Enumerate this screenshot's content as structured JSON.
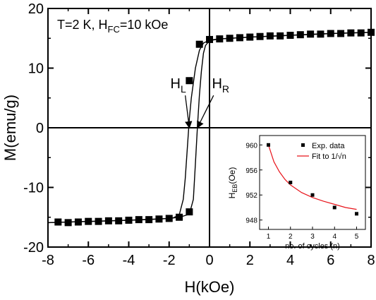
{
  "chart_data": [
    {
      "type": "scatter",
      "annotation": {
        "prefix": "T=2 K, H",
        "sub": "FC",
        "suffix": "=10 kOe"
      },
      "xlabel": "H(kOe)",
      "ylabel": "M(emu/g)",
      "xlim": [
        -8,
        8
      ],
      "ylim": [
        -20,
        20
      ],
      "xticks": [
        -8,
        -6,
        -4,
        -2,
        0,
        2,
        4,
        6,
        8
      ],
      "yticks": [
        -20,
        -10,
        0,
        10,
        20
      ],
      "xtick_labels": [
        "-8",
        "-6",
        "-4",
        "-2",
        "0",
        "2",
        "4",
        "6",
        "8"
      ],
      "ytick_labels": [
        "-20",
        "-10",
        "0",
        "10",
        "20"
      ],
      "series": [
        {
          "marker": "square",
          "x": [
            -7.5,
            -7.0,
            -6.5,
            -6.0,
            -5.5,
            -5.0,
            -4.5,
            -4.0,
            -3.5,
            -3.0,
            -2.5,
            -2.0,
            -1.5,
            -1.0,
            -1.0,
            -0.5,
            0.0,
            0.5,
            1.0,
            1.5,
            2.0,
            2.5,
            3.0,
            3.5,
            4.0,
            4.5,
            5.0,
            5.5,
            6.0,
            6.5,
            7.0,
            7.5,
            8.0
          ],
          "y": [
            -15.8,
            -15.9,
            -15.8,
            -15.7,
            -15.7,
            -15.6,
            -15.6,
            -15.5,
            -15.4,
            -15.4,
            -15.3,
            -15.2,
            -15.0,
            -14.1,
            7.9,
            14.0,
            14.8,
            14.9,
            15.0,
            15.1,
            15.2,
            15.3,
            15.4,
            15.4,
            15.5,
            15.6,
            15.7,
            15.7,
            15.8,
            15.8,
            15.9,
            15.9,
            16.0
          ]
        }
      ],
      "fit_branches": [
        {
          "name": "descending",
          "x": [
            8.0,
            6.0,
            4.0,
            2.0,
            1.0,
            0.5,
            0.0,
            -0.3,
            -0.5,
            -0.7,
            -0.9,
            -1.0,
            -1.1,
            -1.2,
            -1.3,
            -1.5,
            -1.8,
            -2.0,
            -3.0,
            -4.0,
            -6.0,
            -8.0
          ],
          "y": [
            16.0,
            15.8,
            15.5,
            15.2,
            15.0,
            14.9,
            14.7,
            14.2,
            13.0,
            10.0,
            5.0,
            1.5,
            -3.5,
            -8.5,
            -12.0,
            -14.6,
            -15.1,
            -15.2,
            -15.4,
            -15.5,
            -15.7,
            -15.9
          ]
        },
        {
          "name": "ascending",
          "x": [
            -8.0,
            -6.0,
            -4.0,
            -2.0,
            -1.5,
            -1.0,
            -0.8,
            -0.7,
            -0.6,
            -0.5,
            -0.4,
            -0.3,
            -0.2,
            0.0,
            0.5,
            1.0,
            2.0,
            4.0,
            6.0,
            8.0
          ],
          "y": [
            -15.9,
            -15.7,
            -15.5,
            -15.2,
            -15.0,
            -14.5,
            -12.0,
            -6.0,
            0.0,
            5.5,
            9.5,
            12.5,
            13.8,
            14.6,
            14.9,
            15.0,
            15.2,
            15.5,
            15.8,
            16.0
          ]
        }
      ],
      "labels": [
        {
          "base": "H",
          "sub": "L",
          "x": -1.55,
          "y": 4.0,
          "arrow_to": [
            -1.0,
            0.0
          ]
        },
        {
          "base": "H",
          "sub": "R",
          "x": 0.55,
          "y": 4.0,
          "arrow_to": [
            -0.6,
            0.0
          ]
        }
      ],
      "reference_lines": {
        "x": 0,
        "y": 0
      }
    },
    {
      "type": "scatter",
      "xlabel": "no. of cycles (n)",
      "ylabel": {
        "base": "H",
        "sub": "EB",
        "suffix": "(Oe)"
      },
      "xlim": [
        0.6,
        5.4
      ],
      "ylim": [
        946.5,
        961.5
      ],
      "xticks": [
        1,
        2,
        3,
        4,
        5
      ],
      "yticks": [
        948,
        952,
        956,
        960
      ],
      "xtick_labels": [
        "1",
        "2",
        "3",
        "4",
        "5"
      ],
      "ytick_labels": [
        "948",
        "952",
        "956",
        "960"
      ],
      "series": [
        {
          "name": "Exp. data",
          "marker": "square",
          "color": "#000000",
          "x": [
            1,
            2,
            3,
            4,
            5
          ],
          "y": [
            960,
            954,
            952,
            950,
            949
          ]
        },
        {
          "name": "Fit to 1/√n",
          "type": "line",
          "color": "#e8141b",
          "x": [
            1.0,
            1.25,
            1.5,
            1.75,
            2.0,
            2.5,
            3.0,
            3.5,
            4.0,
            4.5,
            5.0
          ],
          "y": [
            960.0,
            957.3,
            955.7,
            954.5,
            953.6,
            952.4,
            951.6,
            951.0,
            950.5,
            950.0,
            949.7
          ]
        }
      ],
      "legend": "top-right"
    }
  ]
}
